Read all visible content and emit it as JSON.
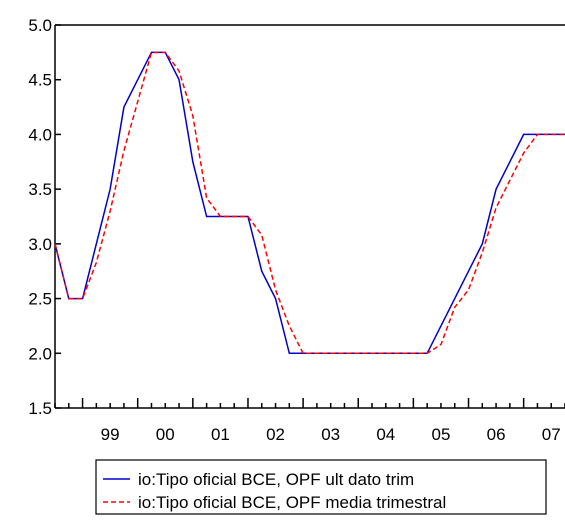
{
  "chart_data": {
    "type": "line",
    "title": "",
    "xlabel": "",
    "ylabel": "",
    "ylim": [
      1.5,
      5.0
    ],
    "xlim": [
      1998.5,
      2007.75
    ],
    "yticks": [
      1.5,
      2.0,
      2.5,
      3.0,
      3.5,
      4.0,
      4.5,
      5.0
    ],
    "ytick_labels": [
      "1.5",
      "2.0",
      "2.5",
      "3.0",
      "3.5",
      "4.0",
      "4.5",
      "5.0"
    ],
    "xtick_labels": [
      {
        "label": "99",
        "pos": 1999.5
      },
      {
        "label": "00",
        "pos": 2000.5
      },
      {
        "label": "01",
        "pos": 2001.5
      },
      {
        "label": "02",
        "pos": 2002.5
      },
      {
        "label": "03",
        "pos": 2003.5
      },
      {
        "label": "04",
        "pos": 2004.5
      },
      {
        "label": "05",
        "pos": 2005.5
      },
      {
        "label": "06",
        "pos": 2006.5
      },
      {
        "label": "07",
        "pos": 2007.5
      }
    ],
    "x": [
      1998.5,
      1998.75,
      1999.0,
      1999.25,
      1999.5,
      1999.75,
      2000.0,
      2000.25,
      2000.5,
      2000.75,
      2001.0,
      2001.25,
      2001.5,
      2001.75,
      2002.0,
      2002.25,
      2002.5,
      2002.75,
      2003.0,
      2003.25,
      2003.5,
      2003.75,
      2004.0,
      2004.25,
      2004.5,
      2004.75,
      2005.0,
      2005.25,
      2005.5,
      2005.75,
      2006.0,
      2006.25,
      2006.5,
      2006.75,
      2007.0,
      2007.25,
      2007.5,
      2007.75
    ],
    "series": [
      {
        "name": "io:Tipo oficial BCE, OPF ult dato trim",
        "color": "#0000cc",
        "dash": "solid",
        "values": [
          3.0,
          2.5,
          2.5,
          3.0,
          3.5,
          4.25,
          4.5,
          4.75,
          4.75,
          4.5,
          3.75,
          3.25,
          3.25,
          3.25,
          3.25,
          2.75,
          2.5,
          2.0,
          2.0,
          2.0,
          2.0,
          2.0,
          2.0,
          2.0,
          2.0,
          2.0,
          2.0,
          2.0,
          2.25,
          2.5,
          2.75,
          3.0,
          3.5,
          3.75,
          4.0,
          4.0,
          4.0,
          4.0
        ]
      },
      {
        "name": "io:Tipo oficial BCE, OPF media trimestral",
        "color": "#ff0000",
        "dash": "dashed",
        "values": [
          3.0,
          2.5,
          2.5,
          2.83,
          3.3,
          3.85,
          4.3,
          4.75,
          4.75,
          4.58,
          4.17,
          3.42,
          3.25,
          3.25,
          3.25,
          3.08,
          2.58,
          2.25,
          2.0,
          2.0,
          2.0,
          2.0,
          2.0,
          2.0,
          2.0,
          2.0,
          2.0,
          2.0,
          2.08,
          2.42,
          2.58,
          2.92,
          3.33,
          3.58,
          3.83,
          4.0,
          4.0,
          4.0
        ]
      }
    ],
    "grid": false,
    "legend": "bottom"
  }
}
